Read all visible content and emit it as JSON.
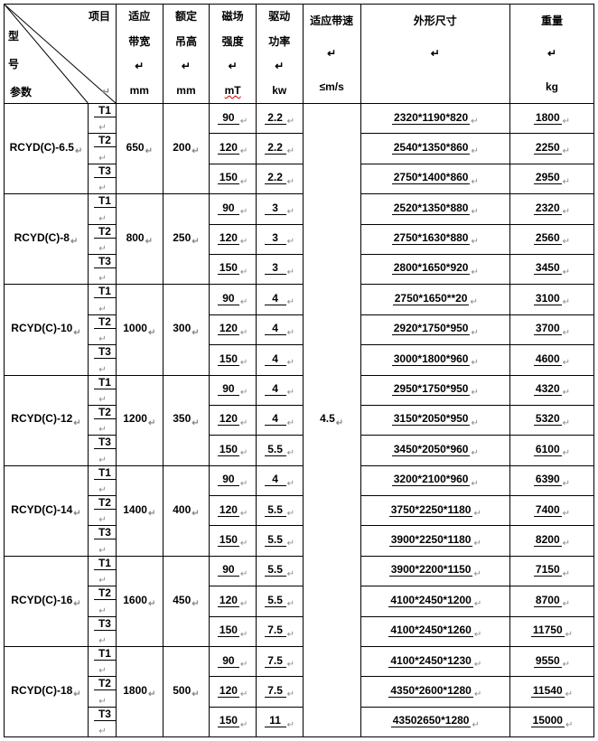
{
  "header": {
    "diag_top": "项目",
    "diag_mid": "型",
    "diag_mid2": "号",
    "diag_bot": "参数",
    "col3": [
      "适应",
      "带宽",
      "mm"
    ],
    "col4": [
      "额定",
      "吊高",
      "mm"
    ],
    "col5": [
      "磁场",
      "强度",
      "mT"
    ],
    "col6": [
      "驱动",
      "功率",
      "kw"
    ],
    "col7": [
      "适应带速",
      "≤m/s"
    ],
    "col8": "外形尺寸",
    "col9": [
      "重量",
      "kg"
    ]
  },
  "belt_speed": "4.5",
  "groups": [
    {
      "model": "RCYD(C)-6.5",
      "width": "650",
      "height": "200",
      "rows": [
        {
          "t": "T1",
          "mt": "90",
          "kw": "2.2",
          "dim": "2320*1190*820",
          "wt": "1800"
        },
        {
          "t": "T2",
          "mt": "120",
          "kw": "2.2",
          "dim": "2540*1350*860",
          "wt": "2250"
        },
        {
          "t": "T3",
          "mt": "150",
          "kw": "2.2",
          "dim": "2750*1400*860",
          "wt": "2950"
        }
      ]
    },
    {
      "model": "RCYD(C)-8",
      "width": "800",
      "height": "250",
      "rows": [
        {
          "t": "T1",
          "mt": "90",
          "kw": "3",
          "dim": "2520*1350*880",
          "wt": "2320"
        },
        {
          "t": "T2",
          "mt": "120",
          "kw": "3",
          "dim": "2750*1630*880",
          "wt": "2560"
        },
        {
          "t": "T3",
          "mt": "150",
          "kw": "3",
          "dim": "2800*1650*920",
          "wt": "3450"
        }
      ]
    },
    {
      "model": "RCYD(C)-10",
      "width": "1000",
      "height": "300",
      "rows": [
        {
          "t": "T1",
          "mt": "90",
          "kw": "4",
          "dim": "2750*1650**20",
          "wt": "3100"
        },
        {
          "t": "T2",
          "mt": "120",
          "kw": "4",
          "dim": "2920*1750*950",
          "wt": "3700"
        },
        {
          "t": "T3",
          "mt": "150",
          "kw": "4",
          "dim": "3000*1800*960",
          "wt": "4600"
        }
      ]
    },
    {
      "model": "RCYD(C)-12",
      "width": "1200",
      "height": "350",
      "rows": [
        {
          "t": "T1",
          "mt": "90",
          "kw": "4",
          "dim": "2950*1750*950",
          "wt": "4320"
        },
        {
          "t": "T2",
          "mt": "120",
          "kw": "4",
          "dim": "3150*2050*950",
          "wt": "5320"
        },
        {
          "t": "T3",
          "mt": "150",
          "kw": "5.5",
          "dim": "3450*2050*960",
          "wt": "6100"
        }
      ]
    },
    {
      "model": "RCYD(C)-14",
      "width": "1400",
      "height": "400",
      "rows": [
        {
          "t": "T1",
          "mt": "90",
          "kw": "4",
          "dim": "3200*2100*960",
          "wt": "6390"
        },
        {
          "t": "T2",
          "mt": "120",
          "kw": "5.5",
          "dim": "3750*2250*1180",
          "wt": "7400"
        },
        {
          "t": "T3",
          "mt": "150",
          "kw": "5.5",
          "dim": "3900*2250*1180",
          "wt": "8200"
        }
      ]
    },
    {
      "model": "RCYD(C)-16",
      "width": "1600",
      "height": "450",
      "rows": [
        {
          "t": "T1",
          "mt": "90",
          "kw": "5.5",
          "dim": "3900*2200*1150",
          "wt": "7150"
        },
        {
          "t": "T2",
          "mt": "120",
          "kw": "5.5",
          "dim": "4100*2450*1200",
          "wt": "8700"
        },
        {
          "t": "T3",
          "mt": "150",
          "kw": "7.5",
          "dim": "4100*2450*1260",
          "wt": "11750"
        }
      ]
    },
    {
      "model": "RCYD(C)-18",
      "width": "1800",
      "height": "500",
      "rows": [
        {
          "t": "T1",
          "mt": "90",
          "kw": "7.5",
          "dim": "4100*2450*1230",
          "wt": "9550"
        },
        {
          "t": "T2",
          "mt": "120",
          "kw": "7.5",
          "dim": "4350*2600*1280",
          "wt": "11540"
        },
        {
          "t": "T3",
          "mt": "150",
          "kw": "11",
          "dim": "43502650*1280",
          "wt": "15000"
        }
      ]
    }
  ]
}
